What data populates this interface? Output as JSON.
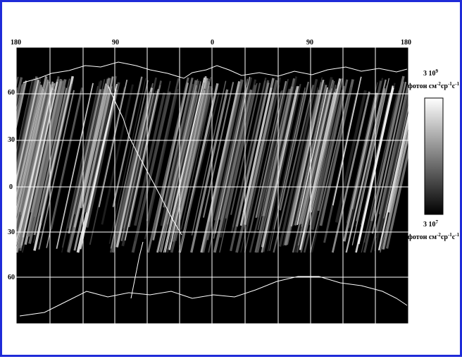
{
  "map": {
    "projection": "equirectangular",
    "background_color": "#000000",
    "grid_color": "#ffffff",
    "coastline_color": "#ffffff",
    "longitude_labels": [
      "180",
      "90",
      "0",
      "90",
      "180"
    ],
    "latitude_labels": [
      "60",
      "30",
      "0",
      "30",
      "60"
    ],
    "swath_orientation": "diagonal"
  },
  "color_scale": {
    "gradient_from": "#000000",
    "gradient_to": "#ffffff",
    "max_value": "3 10",
    "max_exponent": "9",
    "min_value": "3 10",
    "min_exponent": "7",
    "unit_prefix": "фотон см",
    "unit_exp1": "-2",
    "unit_mid": "ср",
    "unit_exp2": "-1",
    "unit_mid2": "с",
    "unit_exp3": "-1"
  }
}
